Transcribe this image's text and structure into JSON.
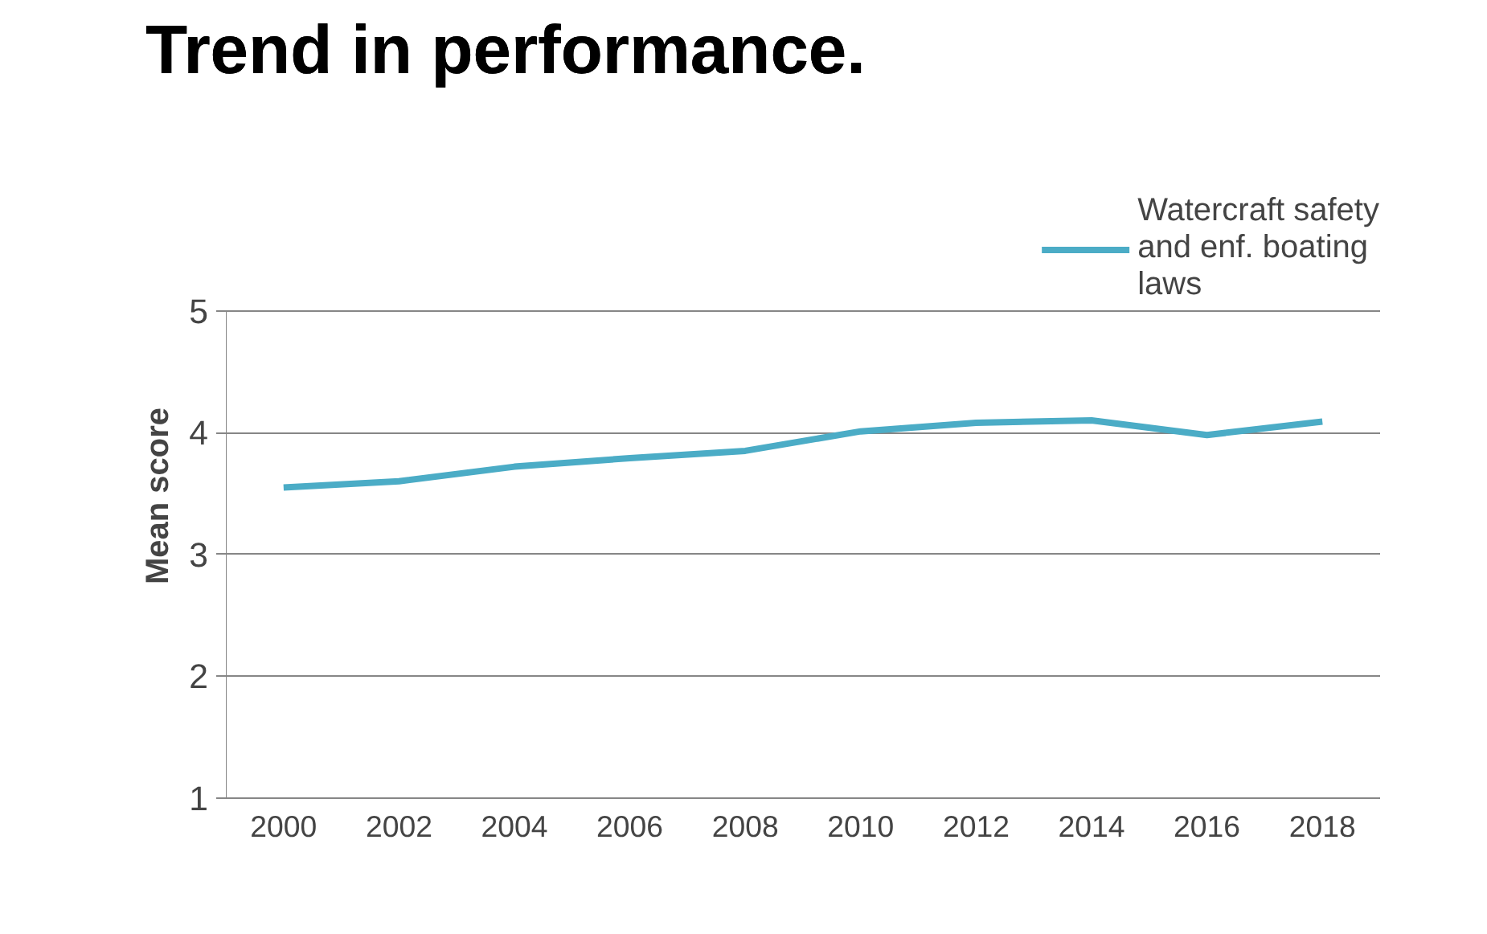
{
  "chart_data": {
    "type": "line",
    "title": "Trend in performance.",
    "ylabel": "Mean score",
    "categories": [
      "2000",
      "2002",
      "2004",
      "2006",
      "2008",
      "2010",
      "2012",
      "2014",
      "2016",
      "2018"
    ],
    "series": [
      {
        "name": "Watercraft safety and enf. boating laws",
        "color": "#4bacc6",
        "values": [
          3.55,
          3.6,
          3.72,
          3.79,
          3.85,
          4.01,
          4.08,
          4.1,
          3.98,
          4.09
        ]
      }
    ],
    "ylim": [
      1,
      5
    ],
    "yticks": [
      1,
      2,
      3,
      4,
      5
    ],
    "grid": "y",
    "legend": "top right",
    "marker": "none",
    "line_style": "solid"
  }
}
